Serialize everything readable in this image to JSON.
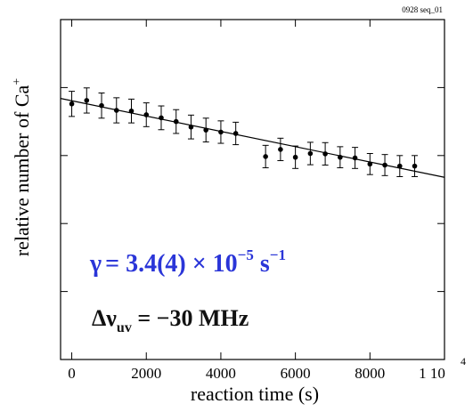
{
  "header_label": "0928 seq_01",
  "chart_data": {
    "type": "scatter",
    "xlabel": "reaction time (s)",
    "ylabel": "relative number of Ca",
    "ylabel_sup": "+",
    "xlim": [
      -300,
      10000
    ],
    "ylim": [
      0,
      1
    ],
    "grid": false,
    "x_ticks": [
      0,
      2000,
      4000,
      6000,
      8000,
      10000
    ],
    "x_tick_labels": [
      "0",
      "2000",
      "4000",
      "6000",
      "8000",
      "1 10"
    ],
    "x_tick_exponent": "4",
    "y_ticks": [
      0.2,
      0.4,
      0.6,
      0.8
    ],
    "series": [
      {
        "x": [
          0,
          400,
          800,
          1200,
          1600,
          2000,
          2400,
          2800,
          3200,
          3600,
          4000,
          4400,
          5200,
          5600,
          6000,
          6400,
          6800,
          7200,
          7600,
          8000,
          8400,
          8800,
          9200
        ],
        "y": [
          0.752,
          0.762,
          0.747,
          0.733,
          0.731,
          0.72,
          0.711,
          0.7,
          0.684,
          0.675,
          0.669,
          0.665,
          0.597,
          0.618,
          0.595,
          0.606,
          0.605,
          0.595,
          0.593,
          0.575,
          0.572,
          0.569,
          0.569
        ],
        "err": [
          0.037,
          0.037,
          0.037,
          0.037,
          0.035,
          0.035,
          0.035,
          0.035,
          0.035,
          0.035,
          0.033,
          0.033,
          0.033,
          0.033,
          0.033,
          0.033,
          0.033,
          0.031,
          0.031,
          0.031,
          0.031,
          0.031,
          0.031
        ]
      }
    ],
    "fit_line": {
      "x": [
        -300,
        10000
      ],
      "y": [
        0.768,
        0.536
      ]
    }
  },
  "annotations": {
    "rate_symbol": "γ",
    "rate_value": "= 3.4(4) × 10",
    "rate_exp": "−5",
    "rate_unit": " s",
    "rate_unit_exp": "−1",
    "rate_color": "#2a35d8",
    "detuning_symbol": "Δν",
    "detuning_sub": "uv",
    "detuning_value": " = −30  MHz",
    "detuning_color": "#111111"
  }
}
